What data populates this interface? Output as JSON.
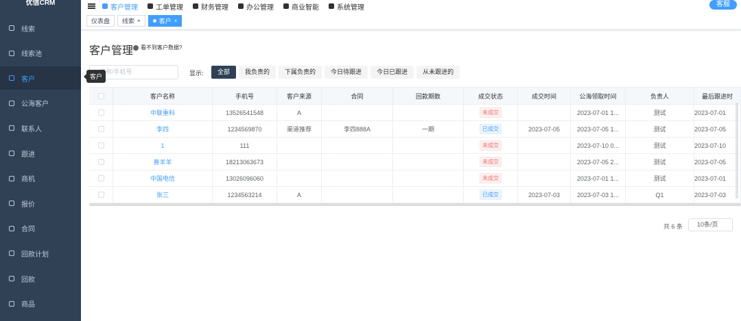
{
  "sidebar": {
    "brand": "优信CRM",
    "items": [
      "线索",
      "线索池",
      "客户",
      "公海客户",
      "联系人",
      "跟进",
      "商机",
      "报价",
      "合同",
      "回款计划",
      "回款",
      "商品"
    ],
    "active": 2
  },
  "topnav": {
    "items": [
      "客户管理",
      "工单管理",
      "财务管理",
      "办公管理",
      "商业智能",
      "系统管理"
    ],
    "active": 0,
    "service": "客服"
  },
  "tags": [
    {
      "label": "仪表盘",
      "closable": false
    },
    {
      "label": "线索",
      "closable": true
    },
    {
      "label": "客户",
      "closable": true,
      "active": true
    }
  ],
  "tooltip": "客户",
  "page": {
    "title": "客户管理",
    "help": "看不到客户数据?",
    "search_placeholder": "名称/手机号",
    "filter_label": "显示:",
    "filters": [
      "全部",
      "我负责的",
      "下属负责的",
      "今日待跟进",
      "今日已跟进",
      "从未跟进的"
    ],
    "active_filter": 0
  },
  "table": {
    "columns": [
      "客户名称",
      "手机号",
      "客户来源",
      "合同",
      "回款期数",
      "成交状态",
      "成交时间",
      "公海领取时间",
      "负责人",
      "最后跟进时"
    ],
    "rows": [
      [
        "中联重科",
        "13526541548",
        "A",
        null,
        null,
        "未成交",
        null,
        "2023-07-01 1...",
        "测试",
        "2023-07-01"
      ],
      [
        "李四",
        "1234569870",
        "渠道推荐",
        "李四888A",
        "一期",
        "已成交",
        "2023-07-05",
        "2023-07-05 1...",
        "测试",
        "2023-07-05"
      ],
      [
        "1",
        "111",
        null,
        null,
        null,
        "未成交",
        null,
        "2023-07-10 0...",
        "测试",
        "2023-07-10"
      ],
      [
        "喜羊羊",
        "18213063673",
        null,
        null,
        null,
        "未成交",
        null,
        "2023-07-05 2...",
        "测试",
        "2023-07-05"
      ],
      [
        "中国电信",
        "13026096060",
        null,
        null,
        null,
        "未成交",
        null,
        "2023-07-01 1...",
        "测试",
        "2023-07-01"
      ],
      [
        "张三",
        "1234563214",
        "A",
        null,
        null,
        "已成交",
        "2023-07-03",
        "2023-07-03 1...",
        "Q1",
        "2023-07-03"
      ]
    ]
  },
  "pagination": {
    "total": "共 6 条",
    "page_size": "10条/页"
  }
}
